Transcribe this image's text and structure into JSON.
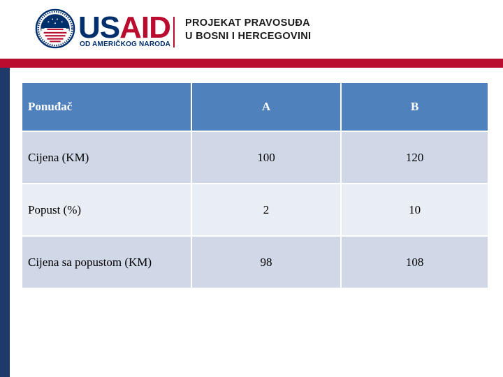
{
  "header": {
    "logo_main_a": "US",
    "logo_main_b": "AID",
    "logo_tagline": "OD AMERIČKOG NARODA",
    "project_line1": "PROJEKAT PRAVOSUĐA",
    "project_line2": "U BOSNI I HERCEGOVINI"
  },
  "colors": {
    "usaid_blue": "#002F6C",
    "usaid_red": "#BA0C2F",
    "table_header": "#4F81BD",
    "row_dark": "#D0D8E8",
    "row_light": "#E9EDF4"
  },
  "table": {
    "headers": [
      "Ponuđač",
      "A",
      "B"
    ],
    "rows": [
      [
        "Cijena (KM)",
        "100",
        "120"
      ],
      [
        "Popust (%)",
        "2",
        "10"
      ],
      [
        "Cijena sa popustom (KM)",
        "98",
        "108"
      ]
    ]
  }
}
